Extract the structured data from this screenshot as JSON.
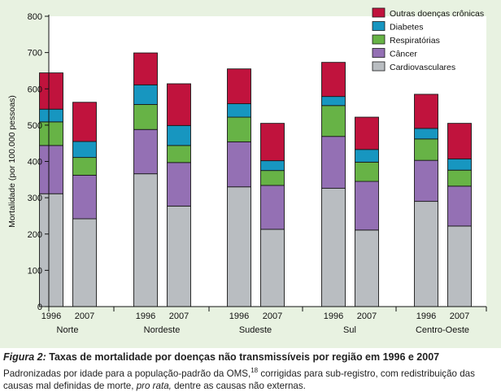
{
  "chart_data": {
    "type": "bar",
    "stacked": true,
    "ylabel": "Mortalidade (por 100.000 pessoas)",
    "ylim": [
      0,
      800
    ],
    "yticks": [
      0,
      100,
      200,
      300,
      400,
      500,
      600,
      700,
      800
    ],
    "legend_position": "top-right",
    "series": [
      {
        "name": "Cardiovasculares",
        "color": "#b9bdc1",
        "values": [
          311,
          242,
          366,
          277,
          330,
          213,
          326,
          211,
          290,
          222
        ]
      },
      {
        "name": "Câncer",
        "color": "#9470b4",
        "values": [
          133,
          120,
          122,
          120,
          124,
          121,
          143,
          134,
          113,
          110
        ]
      },
      {
        "name": "Respiratórias",
        "color": "#67b346",
        "values": [
          65,
          49,
          69,
          47,
          68,
          41,
          85,
          53,
          59,
          44
        ]
      },
      {
        "name": "Diabetes",
        "color": "#1796c0",
        "values": [
          35,
          44,
          54,
          55,
          37,
          27,
          25,
          35,
          29,
          31
        ]
      },
      {
        "name": "Outras doenças crônicas",
        "color": "#c0133d",
        "values": [
          100,
          108,
          88,
          115,
          96,
          103,
          94,
          89,
          94,
          98
        ]
      }
    ],
    "groups": [
      {
        "region": "Norte",
        "years": [
          "1996",
          "2007"
        ]
      },
      {
        "region": "Nordeste",
        "years": [
          "1996",
          "2007"
        ]
      },
      {
        "region": "Sudeste",
        "years": [
          "1996",
          "2007"
        ]
      },
      {
        "region": "Sul",
        "years": [
          "1996",
          "2007"
        ]
      },
      {
        "region": "Centro-Oeste",
        "years": [
          "1996",
          "2007"
        ]
      }
    ]
  },
  "caption": {
    "figure_label": "Figura 2:",
    "title": " Taxas de mortalidade por doenças não transmissíveis por região em 1996 e 2007",
    "note_part1": "Padronizadas por idade para a população-padrão da OMS,",
    "note_ref": "18",
    "note_part2": " corrigidas para sub-registro, com redistribuição das causas mal definidas de morte, ",
    "note_italic": "pro rata,",
    "note_part3": " dentre as causas não externas."
  }
}
